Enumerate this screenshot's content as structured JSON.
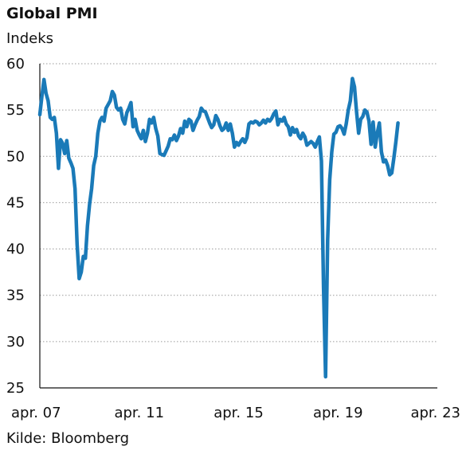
{
  "header": {
    "title": "Global PMI",
    "subtitle": "Indeks"
  },
  "footer": {
    "source": "Kilde: Bloomberg"
  },
  "colors": {
    "line": "#1a7ab8",
    "grid": "#9a9a9a",
    "axis": "#111111"
  },
  "chart_data": {
    "type": "line",
    "title": "Global PMI",
    "ylabel": "Indeks",
    "xlabel": "",
    "ylim": [
      25,
      60
    ],
    "yticks": [
      25,
      30,
      35,
      40,
      45,
      50,
      55,
      60
    ],
    "xlim": [
      "2007-04",
      "2023-04"
    ],
    "xticks": [
      {
        "x": "2007-04",
        "label": "apr. 07"
      },
      {
        "x": "2011-04",
        "label": "apr. 11"
      },
      {
        "x": "2015-04",
        "label": "apr. 15"
      },
      {
        "x": "2019-04",
        "label": "apr. 19"
      },
      {
        "x": "2023-04",
        "label": "apr. 23"
      }
    ],
    "grid": true,
    "series": [
      {
        "points": [
          [
            "2007-04",
            54.5
          ],
          [
            "2007-05",
            56.5
          ],
          [
            "2007-06",
            58.3
          ],
          [
            "2007-07",
            56.8
          ],
          [
            "2007-08",
            56.0
          ],
          [
            "2007-09",
            54.2
          ],
          [
            "2007-10",
            54.0
          ],
          [
            "2007-11",
            54.2
          ],
          [
            "2007-12",
            52.5
          ],
          [
            "2008-01",
            48.7
          ],
          [
            "2008-02",
            51.8
          ],
          [
            "2008-03",
            51.4
          ],
          [
            "2008-04",
            50.3
          ],
          [
            "2008-05",
            51.7
          ],
          [
            "2008-06",
            49.8
          ],
          [
            "2008-07",
            49.3
          ],
          [
            "2008-08",
            48.7
          ],
          [
            "2008-09",
            46.5
          ],
          [
            "2008-10",
            40.5
          ],
          [
            "2008-11",
            36.8
          ],
          [
            "2008-12",
            37.5
          ],
          [
            "2009-01",
            39.2
          ],
          [
            "2009-02",
            39.0
          ],
          [
            "2009-03",
            42.5
          ],
          [
            "2009-04",
            44.8
          ],
          [
            "2009-05",
            46.5
          ],
          [
            "2009-06",
            49.0
          ],
          [
            "2009-07",
            50.0
          ],
          [
            "2009-08",
            52.5
          ],
          [
            "2009-09",
            53.8
          ],
          [
            "2009-10",
            54.2
          ],
          [
            "2009-11",
            53.8
          ],
          [
            "2009-12",
            55.2
          ],
          [
            "2010-01",
            55.6
          ],
          [
            "2010-02",
            56.0
          ],
          [
            "2010-03",
            57.0
          ],
          [
            "2010-04",
            56.6
          ],
          [
            "2010-05",
            55.3
          ],
          [
            "2010-06",
            55.0
          ],
          [
            "2010-07",
            55.2
          ],
          [
            "2010-08",
            54.0
          ],
          [
            "2010-09",
            53.5
          ],
          [
            "2010-10",
            54.7
          ],
          [
            "2010-11",
            55.2
          ],
          [
            "2010-12",
            55.8
          ],
          [
            "2011-01",
            53.2
          ],
          [
            "2011-02",
            54.0
          ],
          [
            "2011-03",
            52.8
          ],
          [
            "2011-04",
            52.3
          ],
          [
            "2011-05",
            51.9
          ],
          [
            "2011-06",
            52.8
          ],
          [
            "2011-07",
            51.6
          ],
          [
            "2011-08",
            52.5
          ],
          [
            "2011-09",
            54.0
          ],
          [
            "2011-10",
            53.6
          ],
          [
            "2011-11",
            54.2
          ],
          [
            "2011-12",
            53.0
          ],
          [
            "2012-01",
            52.2
          ],
          [
            "2012-02",
            50.3
          ],
          [
            "2012-03",
            50.2
          ],
          [
            "2012-04",
            50.1
          ],
          [
            "2012-05",
            50.6
          ],
          [
            "2012-06",
            51.1
          ],
          [
            "2012-07",
            51.9
          ],
          [
            "2012-08",
            51.8
          ],
          [
            "2012-09",
            52.3
          ],
          [
            "2012-10",
            51.7
          ],
          [
            "2012-11",
            52.2
          ],
          [
            "2012-12",
            53.0
          ],
          [
            "2013-01",
            52.5
          ],
          [
            "2013-02",
            53.8
          ],
          [
            "2013-03",
            53.2
          ],
          [
            "2013-04",
            54.0
          ],
          [
            "2013-05",
            53.8
          ],
          [
            "2013-06",
            52.8
          ],
          [
            "2013-07",
            53.4
          ],
          [
            "2013-08",
            53.9
          ],
          [
            "2013-09",
            54.3
          ],
          [
            "2013-10",
            55.2
          ],
          [
            "2013-11",
            54.9
          ],
          [
            "2013-12",
            54.8
          ],
          [
            "2014-01",
            54.2
          ],
          [
            "2014-02",
            53.6
          ],
          [
            "2014-03",
            53.1
          ],
          [
            "2014-04",
            53.4
          ],
          [
            "2014-05",
            54.4
          ],
          [
            "2014-06",
            54.0
          ],
          [
            "2014-07",
            53.3
          ],
          [
            "2014-08",
            52.8
          ],
          [
            "2014-09",
            53.0
          ],
          [
            "2014-10",
            53.6
          ],
          [
            "2014-11",
            52.8
          ],
          [
            "2014-12",
            53.5
          ],
          [
            "2015-01",
            52.5
          ],
          [
            "2015-02",
            51.0
          ],
          [
            "2015-03",
            51.5
          ],
          [
            "2015-04",
            51.2
          ],
          [
            "2015-05",
            51.6
          ],
          [
            "2015-06",
            51.9
          ],
          [
            "2015-07",
            51.5
          ],
          [
            "2015-08",
            52.0
          ],
          [
            "2015-09",
            53.5
          ],
          [
            "2015-10",
            53.7
          ],
          [
            "2015-11",
            53.6
          ],
          [
            "2015-12",
            53.8
          ],
          [
            "2016-01",
            53.7
          ],
          [
            "2016-02",
            53.4
          ],
          [
            "2016-03",
            53.6
          ],
          [
            "2016-04",
            53.9
          ],
          [
            "2016-05",
            53.6
          ],
          [
            "2016-06",
            54.0
          ],
          [
            "2016-07",
            53.8
          ],
          [
            "2016-08",
            54.1
          ],
          [
            "2016-09",
            54.6
          ],
          [
            "2016-10",
            54.9
          ],
          [
            "2016-11",
            53.4
          ],
          [
            "2016-12",
            54.0
          ],
          [
            "2017-01",
            53.8
          ],
          [
            "2017-02",
            54.2
          ],
          [
            "2017-03",
            53.5
          ],
          [
            "2017-04",
            53.2
          ],
          [
            "2017-05",
            52.3
          ],
          [
            "2017-06",
            53.1
          ],
          [
            "2017-07",
            52.6
          ],
          [
            "2017-08",
            52.9
          ],
          [
            "2017-09",
            52.2
          ],
          [
            "2017-10",
            51.9
          ],
          [
            "2017-11",
            52.5
          ],
          [
            "2017-12",
            52.1
          ],
          [
            "2018-01",
            51.2
          ],
          [
            "2018-02",
            51.4
          ],
          [
            "2018-03",
            51.6
          ],
          [
            "2018-04",
            51.4
          ],
          [
            "2018-05",
            51.0
          ],
          [
            "2018-06",
            51.6
          ],
          [
            "2018-07",
            52.1
          ],
          [
            "2018-08",
            49.5
          ],
          [
            "2018-09",
            36.0
          ],
          [
            "2018-10",
            26.2
          ],
          [
            "2018-11",
            41.0
          ],
          [
            "2018-12",
            47.5
          ],
          [
            "2019-01",
            50.5
          ],
          [
            "2019-02",
            52.4
          ],
          [
            "2019-03",
            52.6
          ],
          [
            "2019-04",
            53.2
          ],
          [
            "2019-05",
            53.3
          ],
          [
            "2019-06",
            53.0
          ],
          [
            "2019-07",
            52.4
          ],
          [
            "2019-08",
            53.5
          ],
          [
            "2019-09",
            55.0
          ],
          [
            "2019-10",
            56.0
          ],
          [
            "2019-11",
            58.4
          ],
          [
            "2019-12",
            57.5
          ],
          [
            "2020-01",
            54.8
          ],
          [
            "2020-02",
            52.5
          ],
          [
            "2020-03",
            54.0
          ],
          [
            "2020-04",
            54.3
          ],
          [
            "2020-05",
            55.0
          ],
          [
            "2020-06",
            54.8
          ],
          [
            "2020-07",
            53.8
          ],
          [
            "2020-08",
            51.3
          ],
          [
            "2020-09",
            53.7
          ],
          [
            "2020-10",
            51.0
          ],
          [
            "2020-11",
            52.5
          ],
          [
            "2020-12",
            53.6
          ],
          [
            "2021-01",
            50.5
          ],
          [
            "2021-02",
            49.4
          ],
          [
            "2021-03",
            49.6
          ],
          [
            "2021-04",
            49.0
          ],
          [
            "2021-05",
            48.0
          ],
          [
            "2021-06",
            48.2
          ],
          [
            "2021-07",
            49.8
          ],
          [
            "2021-08",
            51.6
          ],
          [
            "2021-09",
            53.6
          ]
        ]
      }
    ]
  }
}
